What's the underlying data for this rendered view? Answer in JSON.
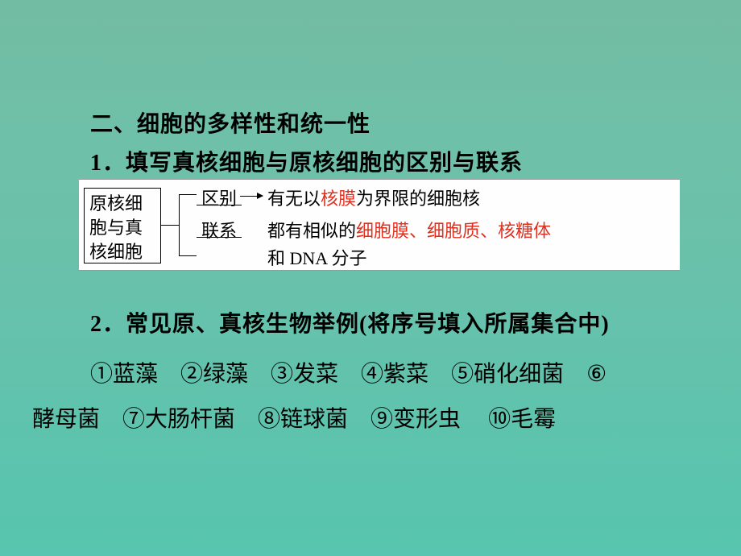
{
  "heading": "二、细胞的多样性和统一性",
  "point1": "1．填写真核细胞与原核细胞的区别与联系",
  "diagram": {
    "left_box_l1": "原核细",
    "left_box_l2": "胞与真",
    "left_box_l3": "核细胞",
    "row1_label": "区别",
    "row1_pre": "有无以",
    "row1_red": "核膜",
    "row1_post": "为界限的细胞核",
    "row2_label": "联系",
    "row2_pre": "都有相似的",
    "row2_red": "细胞膜、细胞质、核糖体",
    "row3": "和 DNA 分子"
  },
  "point2": "2．常见原、真核生物举例(将序号填入所属集合中)",
  "ex": {
    "e1": "①蓝藻",
    "e2": "②绿藻",
    "e3": "③发菜",
    "e4": "④紫菜",
    "e5": "⑤硝化细菌",
    "e6": "⑥",
    "e6b": "酵母菌",
    "e7": "⑦大肠杆菌",
    "e8": "⑧链球菌",
    "e9": "⑨变形虫",
    "e10": "⑩毛霉"
  }
}
